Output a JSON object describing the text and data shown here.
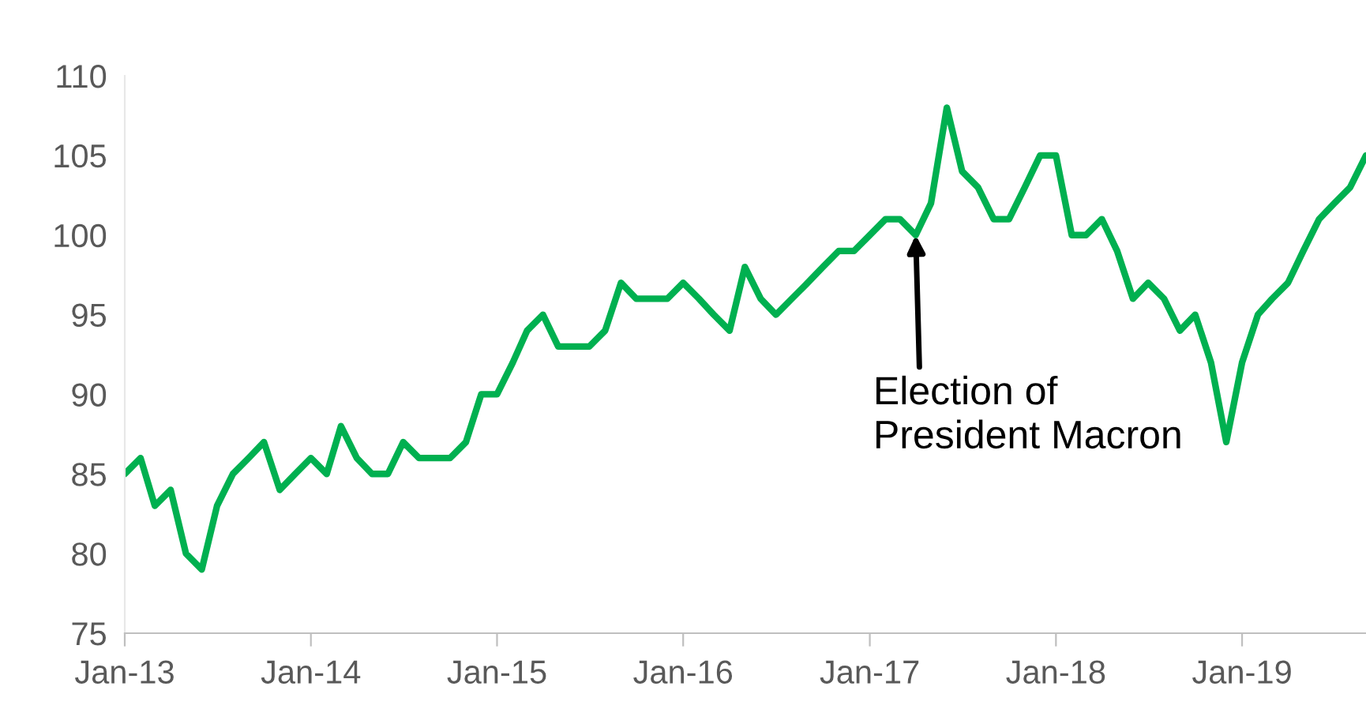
{
  "chart_data": {
    "type": "line",
    "x": [
      "2013-01",
      "2013-02",
      "2013-03",
      "2013-04",
      "2013-05",
      "2013-06",
      "2013-07",
      "2013-08",
      "2013-09",
      "2013-10",
      "2013-11",
      "2013-12",
      "2014-01",
      "2014-02",
      "2014-03",
      "2014-04",
      "2014-05",
      "2014-06",
      "2014-07",
      "2014-08",
      "2014-09",
      "2014-10",
      "2014-11",
      "2014-12",
      "2015-01",
      "2015-02",
      "2015-03",
      "2015-04",
      "2015-05",
      "2015-06",
      "2015-07",
      "2015-08",
      "2015-09",
      "2015-10",
      "2015-11",
      "2015-12",
      "2016-01",
      "2016-02",
      "2016-03",
      "2016-04",
      "2016-05",
      "2016-06",
      "2016-07",
      "2016-08",
      "2016-09",
      "2016-10",
      "2016-11",
      "2016-12",
      "2017-01",
      "2017-02",
      "2017-03",
      "2017-04",
      "2017-05",
      "2017-06",
      "2017-07",
      "2017-08",
      "2017-09",
      "2017-10",
      "2017-11",
      "2017-12",
      "2018-01",
      "2018-02",
      "2018-03",
      "2018-04",
      "2018-05",
      "2018-06",
      "2018-07",
      "2018-08",
      "2018-09",
      "2018-10",
      "2018-11",
      "2018-12",
      "2019-01",
      "2019-02",
      "2019-03",
      "2019-04",
      "2019-05",
      "2019-06",
      "2019-07",
      "2019-08",
      "2019-09"
    ],
    "series": [
      {
        "color": "#00b050",
        "values": [
          85,
          86,
          83,
          84,
          80,
          79,
          83,
          85,
          86,
          87,
          84,
          85,
          86,
          85,
          88,
          86,
          85,
          85,
          87,
          86,
          86,
          86,
          87,
          90,
          90,
          92,
          94,
          95,
          93,
          93,
          93,
          94,
          97,
          96,
          96,
          96,
          97,
          96,
          95,
          94,
          98,
          96,
          95,
          96,
          97,
          98,
          99,
          99,
          100,
          101,
          101,
          100,
          102,
          108,
          104,
          103,
          101,
          101,
          103,
          105,
          105,
          100,
          100,
          101,
          99,
          96,
          97,
          96,
          94,
          95,
          92,
          87,
          92,
          95,
          96,
          97,
          99,
          101,
          102,
          103,
          105
        ]
      }
    ],
    "xlim": [
      "2013-01",
      "2019-09"
    ],
    "xticks": [
      {
        "value": "2013-01",
        "label": "Jan-13"
      },
      {
        "value": "2014-01",
        "label": "Jan-14"
      },
      {
        "value": "2015-01",
        "label": "Jan-15"
      },
      {
        "value": "2016-01",
        "label": "Jan-16"
      },
      {
        "value": "2017-01",
        "label": "Jan-17"
      },
      {
        "value": "2018-01",
        "label": "Jan-18"
      },
      {
        "value": "2019-01",
        "label": "Jan-19"
      }
    ],
    "ylim": [
      75,
      110
    ],
    "yticks": [
      75,
      80,
      85,
      90,
      95,
      100,
      105,
      110
    ],
    "grid": false,
    "marker": "none",
    "line_style": "solid",
    "annotations": [
      {
        "text": "Election of\nPresident Macron",
        "x": "2017-04",
        "y": 100
      }
    ]
  }
}
